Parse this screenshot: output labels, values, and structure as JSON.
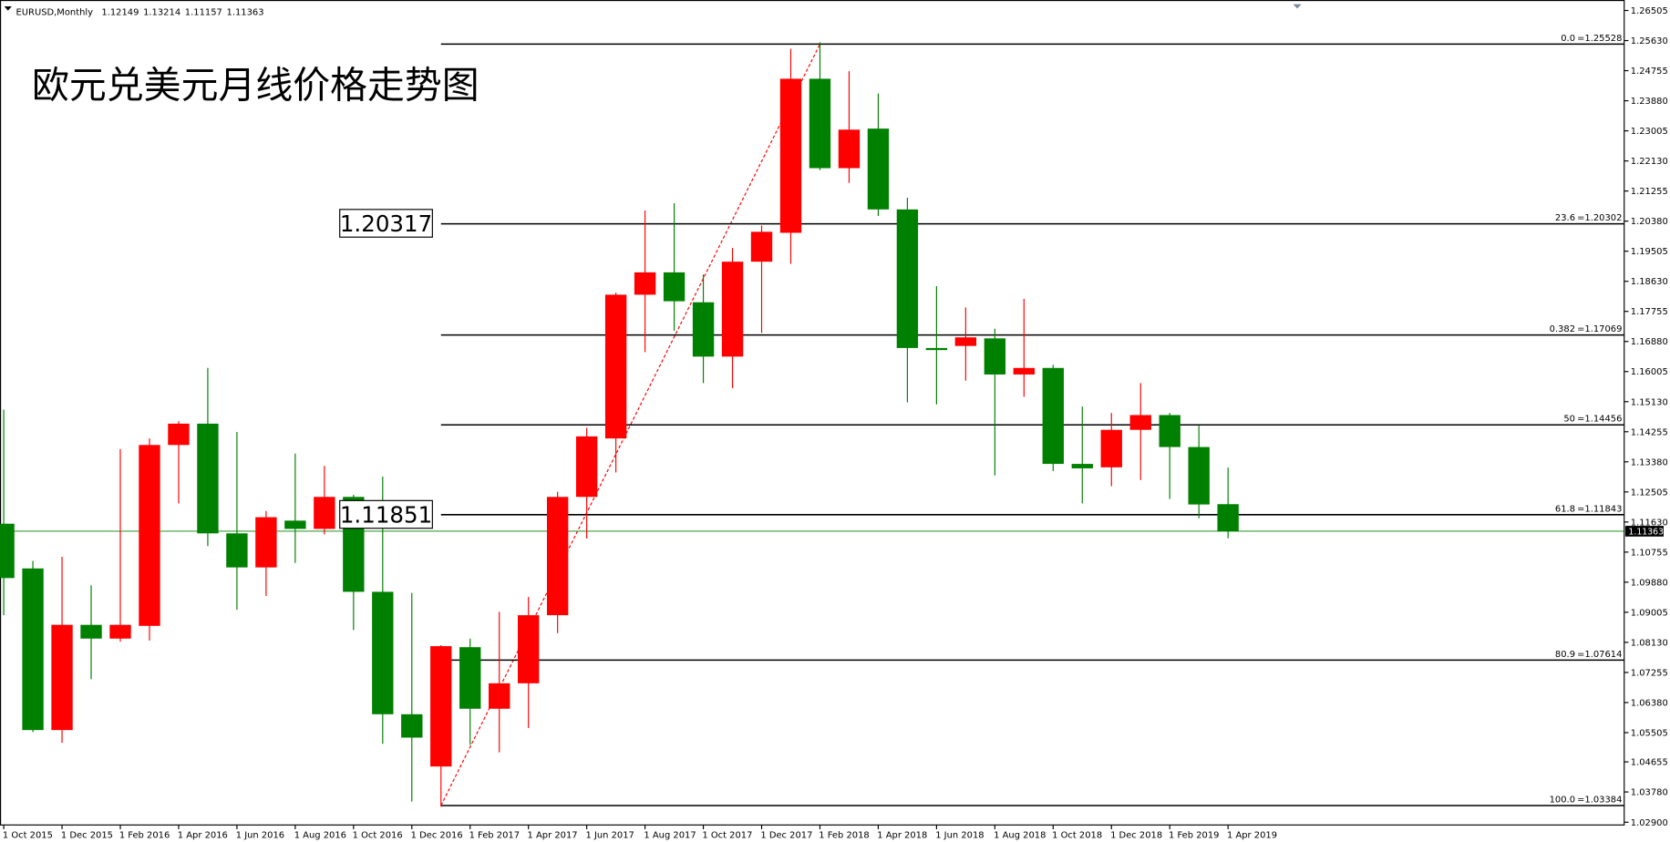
{
  "chart_data": {
    "type": "candlestick",
    "symbol": "EURUSD,Monthly",
    "title": "欧元兑美元月线价格走势图",
    "categories": [
      "1 Oct 2015",
      null,
      "1 Dec 2015",
      null,
      "1 Feb 2016",
      null,
      "1 Apr 2016",
      null,
      "1 Jun 2016",
      null,
      "1 Aug 2016",
      null,
      "1 Oct 2016",
      null,
      "1 Dec 2016",
      null,
      "1 Feb 2017",
      null,
      "1 Apr 2017",
      null,
      "1 Jun 2017",
      null,
      "1 Aug 2017",
      null,
      "1 Oct 2017",
      null,
      "1 Dec 2017",
      null,
      "1 Feb 2018",
      null,
      "1 Apr 2018",
      null,
      "1 Jun 2018",
      null,
      "1 Aug 2018",
      null,
      "1 Oct 2018",
      null,
      "1 Dec 2018",
      null,
      "1 Feb 2019",
      null,
      "1 Apr 2019"
    ],
    "open": [
      1.1158,
      1.1028,
      1.0558,
      1.0864,
      1.0824,
      1.0861,
      1.1387,
      1.1449,
      1.113,
      1.1031,
      1.1167,
      1.1143,
      1.1236,
      1.096,
      1.0604,
      1.0452,
      1.0799,
      1.062,
      1.0694,
      1.0892,
      1.1236,
      1.1406,
      1.1824,
      1.1889,
      1.1802,
      1.1644,
      1.192,
      1.2004,
      1.2452,
      1.2192,
      1.2307,
      1.2072,
      1.1669,
      1.1675,
      1.1697,
      1.1592,
      1.1611,
      1.1332,
      1.1322,
      1.1431,
      1.1474,
      1.1381,
      1.12149
    ],
    "high": [
      1.149,
      1.105,
      1.1062,
      1.0979,
      1.1375,
      1.1406,
      1.1456,
      1.1611,
      1.1425,
      1.1195,
      1.1362,
      1.1326,
      1.1242,
      1.1295,
      1.0957,
      1.0805,
      1.0824,
      1.0902,
      1.0945,
      1.1251,
      1.1437,
      1.183,
      1.2069,
      1.209,
      1.1883,
      1.196,
      1.2025,
      1.2539,
      1.2558,
      1.2474,
      1.2409,
      1.2106,
      1.1849,
      1.1787,
      1.1725,
      1.1812,
      1.162,
      1.1499,
      1.148,
      1.1567,
      1.148,
      1.1443,
      1.13214
    ],
    "low": [
      1.0892,
      1.0552,
      1.0521,
      1.0706,
      1.0815,
      1.0818,
      1.1217,
      1.1093,
      1.0908,
      1.0948,
      1.1044,
      1.1127,
      1.0849,
      1.0518,
      1.035,
      1.0335,
      1.0515,
      1.0493,
      1.0564,
      1.084,
      1.1115,
      1.1307,
      1.1657,
      1.1719,
      1.1567,
      1.1552,
      1.1713,
      1.1914,
      1.2186,
      1.2149,
      1.2053,
      1.1511,
      1.1505,
      1.1574,
      1.1298,
      1.1527,
      1.1311,
      1.1217,
      1.1267,
      1.1285,
      1.123,
      1.1174,
      1.11157
    ],
    "close": [
      1.1,
      1.0558,
      1.0864,
      1.0824,
      1.0864,
      1.1387,
      1.1449,
      1.113,
      1.1031,
      1.1177,
      1.1143,
      1.1236,
      1.096,
      1.0604,
      1.0536,
      1.0802,
      1.062,
      1.0694,
      1.0892,
      1.1236,
      1.1412,
      1.1824,
      1.1889,
      1.1805,
      1.1644,
      1.192,
      1.2007,
      1.2452,
      1.2192,
      1.2304,
      1.2072,
      1.1669,
      1.1663,
      1.17,
      1.1592,
      1.1611,
      1.1332,
      1.1319,
      1.1431,
      1.1474,
      1.1381,
      1.1214,
      1.11363
    ],
    "up_color": "#ff0000",
    "down_color": "#008000",
    "price_line_color": "#008000",
    "ylim": [
      1.0282,
      1.2681
    ],
    "yticks": [
      1.26505,
      {
        "value": 1.2563,
        "label": "1.25630"
      },
      1.24755,
      {
        "value": 1.2388,
        "label": "1.23880"
      },
      1.23005,
      {
        "value": 1.2213,
        "label": "1.22130"
      },
      1.21255,
      {
        "value": 1.2038,
        "label": "1.20380"
      },
      1.19505,
      {
        "value": 1.1863,
        "label": "1.18630"
      },
      1.17755,
      {
        "value": 1.1688,
        "label": "1.16880"
      },
      1.16005,
      {
        "value": 1.1513,
        "label": "1.15130"
      },
      1.14255,
      {
        "value": 1.1338,
        "label": "1.13380"
      },
      1.12505,
      {
        "value": 1.1163,
        "label": "1.11630"
      },
      1.10755,
      {
        "value": 1.0988,
        "label": "1.09880"
      },
      1.09005,
      {
        "value": 1.0813,
        "label": "1.08130"
      },
      1.07255,
      {
        "value": 1.0638,
        "label": "1.06380"
      },
      1.05505,
      1.04655,
      {
        "value": 1.0378,
        "label": "1.03780"
      },
      {
        "value": 1.029,
        "label": "1.02900"
      }
    ],
    "fibonacci": {
      "color": "#000000",
      "trend_color": "#ff0000",
      "levels": [
        {
          "level": "0.0",
          "price": {
            "value": 1.25528,
            "label": "=1.25528"
          }
        },
        {
          "level": "23.6",
          "price": {
            "value": 1.20302,
            "label": "=1.20302"
          }
        },
        {
          "level": "0.382",
          "price": {
            "value": 1.17069,
            "label": "=1.17069"
          }
        },
        {
          "level": "50",
          "price": {
            "value": 1.14456,
            "label": "=1.14456"
          }
        },
        {
          "level": "61.8",
          "price": {
            "value": 1.11843,
            "label": "=1.11843"
          }
        },
        {
          "level": "80.9",
          "price": {
            "value": 1.07614,
            "label": "=1.07614"
          }
        },
        {
          "level": "100.0",
          "price": {
            "value": 1.03384,
            "label": "=1.03384"
          }
        }
      ]
    },
    "annotations": [
      1.20317,
      1.11851
    ]
  }
}
